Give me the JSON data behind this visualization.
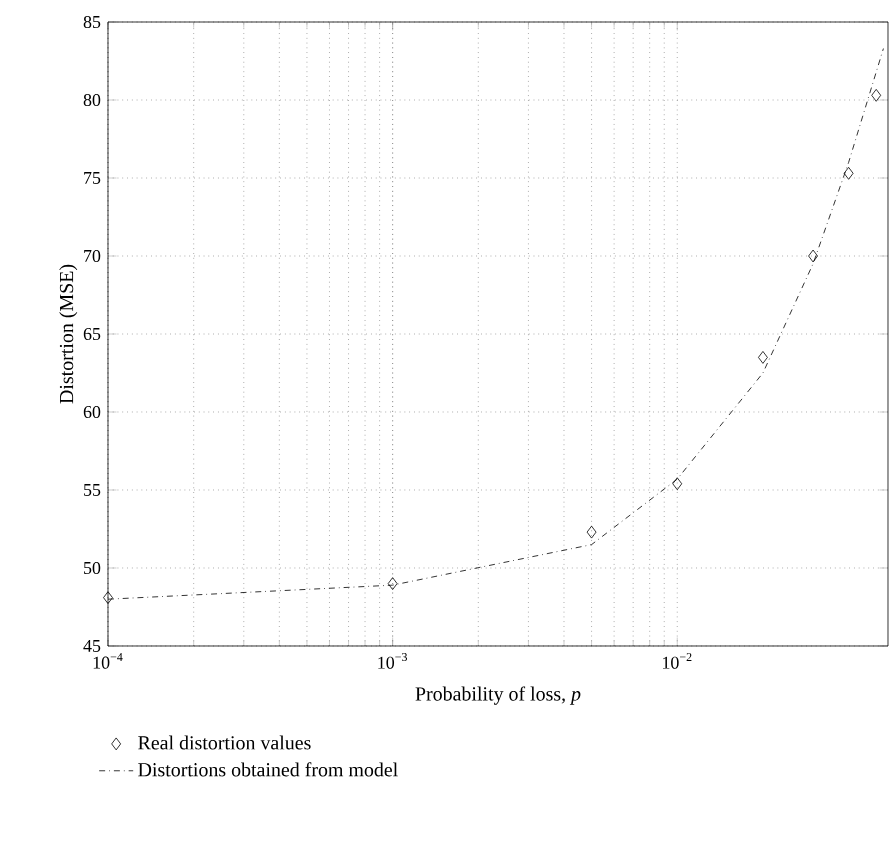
{
  "chart_data": {
    "type": "scatter",
    "xlabel": "Probability of loss, *p*",
    "ylabel": "Distortion (MSE)",
    "log": "x",
    "grid": true,
    "legend": "bottom",
    "xlim": [
      0.0001,
      0.055
    ],
    "ylim": [
      45,
      85
    ],
    "xticks": [
      {
        "value": 0.0001,
        "label": "10$^{−4}$"
      },
      {
        "value": 0.001,
        "label": "10$^{−3}$"
      },
      {
        "value": 0.01,
        "label": "10$^{−2}$"
      }
    ],
    "yticks": [
      45,
      50,
      55,
      60,
      65,
      70,
      75,
      80,
      85
    ],
    "series": [
      {
        "name": "Real distortion values",
        "marker": "diamond",
        "color": "#000000",
        "x": [
          0.0001,
          0.001,
          0.005,
          0.01,
          0.02,
          0.03,
          0.04,
          0.05
        ],
        "values": [
          48.1,
          49.0,
          52.3,
          55.4,
          63.5,
          70.0,
          75.3,
          80.3
        ]
      },
      {
        "name": "Distortions obtained from model",
        "type": "line",
        "line_style": "dashdot",
        "color": "#000000",
        "x": [
          0.0001,
          0.001,
          0.005,
          0.01,
          0.02,
          0.03,
          0.04,
          0.053
        ],
        "values": [
          48.0,
          48.9,
          51.5,
          55.7,
          62.5,
          69.5,
          76.0,
          83.3
        ]
      }
    ]
  }
}
